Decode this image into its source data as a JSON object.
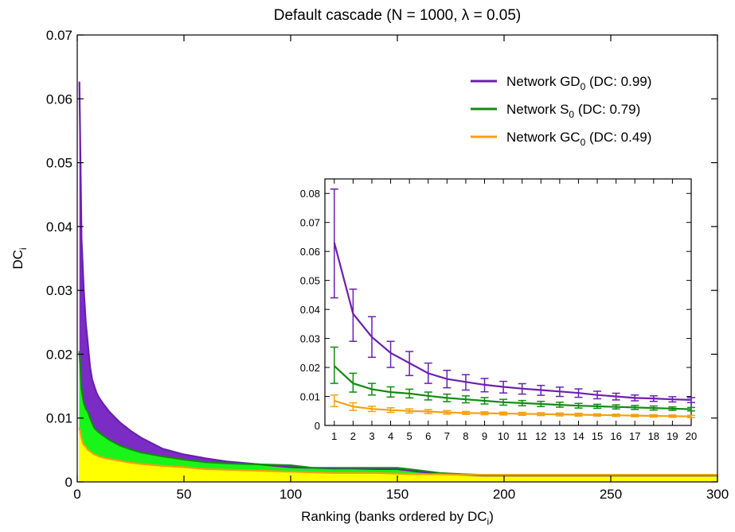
{
  "chart_data": [
    {
      "type": "area",
      "title": "Default cascade (N = 1000, λ = 0.05)",
      "xlabel": "Ranking (banks ordered by DC",
      "xlabel_sub": "i",
      "xlabel_end": ")",
      "ylabel": "DC",
      "ylabel_sub": "i",
      "xlim": [
        0,
        300
      ],
      "ylim": [
        0,
        0.07
      ],
      "x_ticks": [
        "0",
        "50",
        "100",
        "150",
        "200",
        "250",
        "300"
      ],
      "y_ticks": [
        "0",
        "0.01",
        "0.02",
        "0.03",
        "0.04",
        "0.05",
        "0.06",
        "0.07"
      ],
      "grid": false,
      "legend_position": "top-right",
      "series": [
        {
          "name": "Network GD",
          "name_sub": "0",
          "name_suffix": " (DC: 0.99)",
          "line_color": "#6a1fb0",
          "fill_color": "#7a2cc4",
          "x": [
            1,
            2,
            3,
            4,
            5,
            6,
            7,
            8,
            9,
            10,
            12,
            15,
            20,
            25,
            30,
            40,
            50,
            60,
            70,
            80,
            90,
            100,
            110,
            120,
            130,
            140,
            150,
            160,
            170,
            180,
            190,
            200,
            250,
            300
          ],
          "values": [
            0.0627,
            0.038,
            0.0305,
            0.025,
            0.0215,
            0.018,
            0.016,
            0.015,
            0.014,
            0.0133,
            0.0123,
            0.011,
            0.0093,
            0.008,
            0.0069,
            0.0052,
            0.0043,
            0.0037,
            0.0032,
            0.0029,
            0.0026,
            0.0023,
            0.0022,
            0.0021,
            0.0021,
            0.002,
            0.002,
            0.0016,
            0.0013,
            0.0011,
            0.001,
            0.001,
            0.001,
            0.001
          ]
        },
        {
          "name": "Network S",
          "name_sub": "0",
          "name_suffix": " (DC: 0.79)",
          "line_color": "#138a13",
          "fill_color": "#19f519",
          "x": [
            1,
            2,
            3,
            4,
            5,
            6,
            7,
            8,
            9,
            10,
            12,
            15,
            20,
            25,
            30,
            40,
            50,
            60,
            70,
            80,
            90,
            100,
            110,
            120,
            130,
            140,
            150,
            160,
            170,
            180,
            190,
            200,
            250,
            300
          ],
          "values": [
            0.0205,
            0.0145,
            0.0125,
            0.0115,
            0.011,
            0.01,
            0.0092,
            0.0085,
            0.0081,
            0.0078,
            0.0073,
            0.0066,
            0.0057,
            0.0051,
            0.0046,
            0.004,
            0.0035,
            0.0031,
            0.0029,
            0.0028,
            0.0027,
            0.0026,
            0.0022,
            0.0022,
            0.0022,
            0.0022,
            0.0022,
            0.0018,
            0.0014,
            0.0012,
            0.0011,
            0.0011,
            0.0011,
            0.0011
          ]
        },
        {
          "name": "Network GC",
          "name_sub": "0",
          "name_suffix": " (DC: 0.49)",
          "line_color": "#f5a011",
          "fill_color": "#ffff00",
          "x": [
            1,
            2,
            3,
            4,
            5,
            6,
            7,
            8,
            9,
            10,
            12,
            15,
            20,
            25,
            30,
            40,
            50,
            60,
            70,
            80,
            90,
            100,
            110,
            120,
            130,
            140,
            150,
            160,
            170,
            180,
            190,
            200,
            250,
            300
          ],
          "values": [
            0.0085,
            0.0068,
            0.0058,
            0.0055,
            0.005,
            0.0048,
            0.0045,
            0.0043,
            0.0042,
            0.004,
            0.0038,
            0.0036,
            0.0033,
            0.003,
            0.0028,
            0.0025,
            0.0023,
            0.002,
            0.0019,
            0.0018,
            0.0017,
            0.0016,
            0.0015,
            0.0014,
            0.0014,
            0.0014,
            0.0013,
            0.0012,
            0.0012,
            0.0011,
            0.0011,
            0.0011,
            0.0011,
            0.0011
          ]
        }
      ]
    },
    {
      "type": "line",
      "title": "",
      "xlabel": "",
      "ylabel": "",
      "xlim": [
        0.5,
        20
      ],
      "ylim": [
        0,
        0.085
      ],
      "x_ticks": [
        "1",
        "2",
        "3",
        "4",
        "5",
        "6",
        "7",
        "8",
        "9",
        "10",
        "11",
        "12",
        "13",
        "14",
        "15",
        "16",
        "17",
        "18",
        "19",
        "20"
      ],
      "y_ticks": [
        "0",
        "0.01",
        "0.02",
        "0.03",
        "0.04",
        "0.05",
        "0.06",
        "0.07",
        "0.08"
      ],
      "grid": false,
      "x": [
        1,
        2,
        3,
        4,
        5,
        6,
        7,
        8,
        9,
        10,
        11,
        12,
        13,
        14,
        15,
        16,
        17,
        18,
        19,
        20
      ],
      "series": [
        {
          "color": "#6a1fb0",
          "values": [
            0.063,
            0.0385,
            0.0305,
            0.025,
            0.0215,
            0.018,
            0.016,
            0.015,
            0.014,
            0.0133,
            0.0127,
            0.0122,
            0.0117,
            0.0112,
            0.0105,
            0.01,
            0.0095,
            0.0093,
            0.009,
            0.0088
          ],
          "lower": [
            0.044,
            0.029,
            0.0235,
            0.02,
            0.0172,
            0.0145,
            0.013,
            0.0122,
            0.0116,
            0.0112,
            0.0108,
            0.0104,
            0.01,
            0.0097,
            0.0092,
            0.0088,
            0.0085,
            0.0083,
            0.0081,
            0.0079
          ],
          "upper": [
            0.0815,
            0.047,
            0.0375,
            0.029,
            0.0255,
            0.0215,
            0.019,
            0.0175,
            0.0162,
            0.0152,
            0.0144,
            0.0138,
            0.0132,
            0.0126,
            0.0118,
            0.0111,
            0.0105,
            0.0102,
            0.0099,
            0.0096
          ]
        },
        {
          "color": "#138a13",
          "values": [
            0.0205,
            0.0145,
            0.0125,
            0.0115,
            0.011,
            0.0102,
            0.0095,
            0.009,
            0.0085,
            0.008,
            0.0077,
            0.0074,
            0.0071,
            0.0068,
            0.0066,
            0.0064,
            0.0062,
            0.006,
            0.0058,
            0.0056
          ],
          "lower": [
            0.0145,
            0.0115,
            0.0105,
            0.0098,
            0.0095,
            0.0088,
            0.0082,
            0.0078,
            0.0074,
            0.007,
            0.0068,
            0.0065,
            0.0063,
            0.006,
            0.0059,
            0.0057,
            0.0055,
            0.0053,
            0.0052,
            0.005
          ],
          "upper": [
            0.027,
            0.018,
            0.0145,
            0.0133,
            0.0125,
            0.0115,
            0.0108,
            0.0102,
            0.0096,
            0.009,
            0.0086,
            0.0083,
            0.008,
            0.0076,
            0.0073,
            0.0071,
            0.0069,
            0.0067,
            0.0064,
            0.0062
          ]
        },
        {
          "color": "#f5a011",
          "values": [
            0.0085,
            0.0065,
            0.0057,
            0.0053,
            0.005,
            0.0048,
            0.0045,
            0.0043,
            0.0042,
            0.0041,
            0.004,
            0.0039,
            0.0038,
            0.0037,
            0.0036,
            0.0035,
            0.0034,
            0.0033,
            0.0032,
            0.0031
          ],
          "lower": [
            0.0065,
            0.0052,
            0.0048,
            0.0045,
            0.0043,
            0.0041,
            0.0039,
            0.0038,
            0.0037,
            0.0036,
            0.0035,
            0.0034,
            0.0033,
            0.0032,
            0.0032,
            0.0031,
            0.003,
            0.0029,
            0.0028,
            0.0027
          ],
          "upper": [
            0.0105,
            0.0078,
            0.0066,
            0.0061,
            0.0057,
            0.0055,
            0.0051,
            0.0048,
            0.0047,
            0.0046,
            0.0045,
            0.0044,
            0.0043,
            0.0042,
            0.004,
            0.0039,
            0.0038,
            0.0037,
            0.0036,
            0.0035
          ]
        }
      ]
    }
  ]
}
